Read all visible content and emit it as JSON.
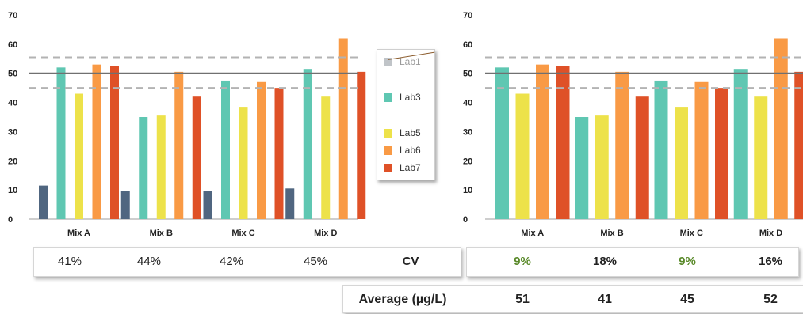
{
  "chart_data": [
    {
      "type": "bar",
      "categories": [
        "Mix A",
        "Mix B",
        "Mix C",
        "Mix D"
      ],
      "ylim": [
        0,
        70
      ],
      "yticks": [
        0,
        10,
        20,
        30,
        40,
        50,
        60,
        70
      ],
      "reference_lines": [
        {
          "value": 50,
          "style": "solid"
        },
        {
          "value": 55.5,
          "style": "dashed"
        },
        {
          "value": 45,
          "style": "dashed"
        }
      ],
      "series": [
        {
          "name": "Lab1",
          "color": "#506680",
          "values": [
            11.5,
            9.5,
            9.5,
            10.5
          ]
        },
        {
          "name": "Lab3",
          "color": "#5fc7b2",
          "values": [
            52,
            35,
            47.5,
            51.5
          ]
        },
        {
          "name": "Lab5",
          "color": "#ede24a",
          "values": [
            43,
            35.5,
            38.5,
            42
          ]
        },
        {
          "name": "Lab6",
          "color": "#f99a45",
          "values": [
            53,
            50.5,
            47,
            62
          ]
        },
        {
          "name": "Lab7",
          "color": "#df5127",
          "values": [
            52.5,
            42,
            45,
            50.5
          ]
        }
      ],
      "legend": {
        "placement": "right",
        "struck_out": [
          "Lab1"
        ]
      }
    },
    {
      "type": "bar",
      "categories": [
        "Mix A",
        "Mix B",
        "Mix C",
        "Mix D"
      ],
      "ylim": [
        0,
        70
      ],
      "yticks": [
        0,
        10,
        20,
        30,
        40,
        50,
        60,
        70
      ],
      "reference_lines": [
        {
          "value": 50,
          "style": "solid"
        },
        {
          "value": 55.5,
          "style": "dashed"
        },
        {
          "value": 45,
          "style": "dashed"
        }
      ],
      "series": [
        {
          "name": "Lab3",
          "color": "#5fc7b2",
          "values": [
            52,
            35,
            47.5,
            51.5
          ]
        },
        {
          "name": "Lab5",
          "color": "#ede24a",
          "values": [
            43,
            35.5,
            38.5,
            42
          ]
        },
        {
          "name": "Lab6",
          "color": "#f99a45",
          "values": [
            53,
            50.5,
            47,
            62
          ]
        },
        {
          "name": "Lab7",
          "color": "#df5127",
          "values": [
            52.5,
            42,
            45,
            50.5
          ]
        }
      ]
    }
  ],
  "legend_items": [
    {
      "label": "Lab1",
      "color": "#c0c4c8"
    },
    {
      "label": "Lab3",
      "color": "#5fc7b2"
    },
    {
      "label": "Lab5",
      "color": "#ede24a"
    },
    {
      "label": "Lab6",
      "color": "#f99a45"
    },
    {
      "label": "Lab7",
      "color": "#df5127"
    }
  ],
  "cv_row": {
    "label": "CV",
    "left_values": [
      "41%",
      "44%",
      "42%",
      "45%"
    ],
    "right_values": [
      "9%",
      "18%",
      "9%",
      "16%"
    ],
    "highlight_color": "#5a8a2a"
  },
  "average_row": {
    "label": "Average (µg/L)",
    "values": [
      "51",
      "41",
      "45",
      "52"
    ]
  }
}
